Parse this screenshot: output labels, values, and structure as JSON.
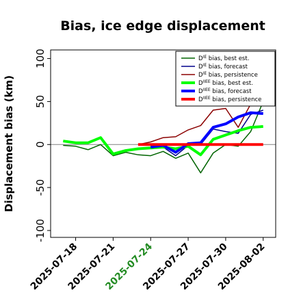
{
  "chart_data": {
    "type": "line",
    "title": "Bias, ice edge displacement",
    "xlabel": "",
    "ylabel": "Displacement bias (km)",
    "ylim": [
      -108,
      110
    ],
    "xlim": [
      "2025-07-16",
      "2025-08-03"
    ],
    "yticks": [
      -100,
      -50,
      0,
      50,
      100
    ],
    "xticks": [
      {
        "date": "2025-07-18",
        "label": "2025-07-18",
        "color": "#000000"
      },
      {
        "date": "2025-07-21",
        "label": "2025-07-21",
        "color": "#000000"
      },
      {
        "date": "2025-07-24",
        "label": "2025-07-24",
        "color": "#228b22"
      },
      {
        "date": "2025-07-27",
        "label": "2025-07-27",
        "color": "#000000"
      },
      {
        "date": "2025-07-30",
        "label": "2025-07-30",
        "color": "#000000"
      },
      {
        "date": "2025-08-02",
        "label": "2025-08-02",
        "color": "#000000"
      }
    ],
    "zero_line": true,
    "grid": false,
    "legend_position": "top-right",
    "series": [
      {
        "name": "D bias, best est.",
        "sup": "IE",
        "color": "#006400",
        "width": 1.5,
        "points": [
          [
            "2025-07-17",
            -1
          ],
          [
            "2025-07-18",
            -2
          ],
          [
            "2025-07-19",
            -6
          ],
          [
            "2025-07-20",
            0
          ],
          [
            "2025-07-21",
            -13
          ],
          [
            "2025-07-22",
            -9
          ],
          [
            "2025-07-23",
            -12
          ],
          [
            "2025-07-24",
            -13
          ],
          [
            "2025-07-25",
            -8
          ],
          [
            "2025-07-26",
            -16
          ],
          [
            "2025-07-27",
            -10
          ],
          [
            "2025-07-28",
            -33
          ],
          [
            "2025-07-29",
            -10
          ],
          [
            "2025-07-30",
            0
          ],
          [
            "2025-07-31",
            -2
          ],
          [
            "2025-08-01",
            15
          ],
          [
            "2025-08-02",
            50
          ]
        ]
      },
      {
        "name": "D bias, forecast",
        "sup": "IE",
        "color": "#00008b",
        "width": 1.5,
        "points": [
          [
            "2025-07-24",
            -2
          ],
          [
            "2025-07-25",
            -3
          ],
          [
            "2025-07-26",
            -13
          ],
          [
            "2025-07-27",
            -1
          ],
          [
            "2025-07-28",
            0
          ],
          [
            "2025-07-29",
            18
          ],
          [
            "2025-07-30",
            15
          ],
          [
            "2025-07-31",
            13
          ],
          [
            "2025-08-01",
            35
          ],
          [
            "2025-08-02",
            40
          ]
        ]
      },
      {
        "name": "D bias, persistence",
        "sup": "IE",
        "color": "#8b0000",
        "width": 1.5,
        "points": [
          [
            "2025-07-23",
            0
          ],
          [
            "2025-07-24",
            3
          ],
          [
            "2025-07-25",
            8
          ],
          [
            "2025-07-26",
            9
          ],
          [
            "2025-07-27",
            17
          ],
          [
            "2025-07-28",
            22
          ],
          [
            "2025-07-29",
            40
          ],
          [
            "2025-07-30",
            42
          ],
          [
            "2025-07-31",
            20
          ],
          [
            "2025-08-01",
            47
          ]
        ]
      },
      {
        "name": "D bias, best est.",
        "sup": "IIEE",
        "color": "#00ff00",
        "width": 4,
        "points": [
          [
            "2025-07-17",
            4
          ],
          [
            "2025-07-18",
            2
          ],
          [
            "2025-07-19",
            2
          ],
          [
            "2025-07-20",
            8
          ],
          [
            "2025-07-21",
            -11
          ],
          [
            "2025-07-22",
            -7
          ],
          [
            "2025-07-23",
            -5
          ],
          [
            "2025-07-24",
            -4
          ],
          [
            "2025-07-25",
            -3
          ],
          [
            "2025-07-26",
            -5
          ],
          [
            "2025-07-27",
            -2
          ],
          [
            "2025-07-28",
            -12
          ],
          [
            "2025-07-29",
            6
          ],
          [
            "2025-07-30",
            11
          ],
          [
            "2025-07-31",
            16
          ],
          [
            "2025-08-01",
            20
          ],
          [
            "2025-08-02",
            21
          ]
        ]
      },
      {
        "name": "D bias, forecast",
        "sup": "IIEE",
        "color": "#0000ff",
        "width": 4,
        "points": [
          [
            "2025-07-24",
            -3
          ],
          [
            "2025-07-25",
            -1
          ],
          [
            "2025-07-26",
            -9
          ],
          [
            "2025-07-27",
            1
          ],
          [
            "2025-07-28",
            2
          ],
          [
            "2025-07-29",
            20
          ],
          [
            "2025-07-30",
            24
          ],
          [
            "2025-07-31",
            32
          ],
          [
            "2025-08-01",
            37
          ],
          [
            "2025-08-02",
            36
          ]
        ]
      },
      {
        "name": "D bias, persistence",
        "sup": "IIEE",
        "color": "#ff0000",
        "width": 4,
        "points": [
          [
            "2025-07-23",
            0
          ],
          [
            "2025-07-24",
            0
          ],
          [
            "2025-07-25",
            0
          ],
          [
            "2025-07-26",
            0
          ],
          [
            "2025-07-27",
            0
          ],
          [
            "2025-07-28",
            0
          ],
          [
            "2025-07-29",
            0
          ],
          [
            "2025-07-30",
            0
          ],
          [
            "2025-07-31",
            0
          ],
          [
            "2025-08-01",
            0
          ],
          [
            "2025-08-02",
            0
          ]
        ]
      }
    ]
  }
}
